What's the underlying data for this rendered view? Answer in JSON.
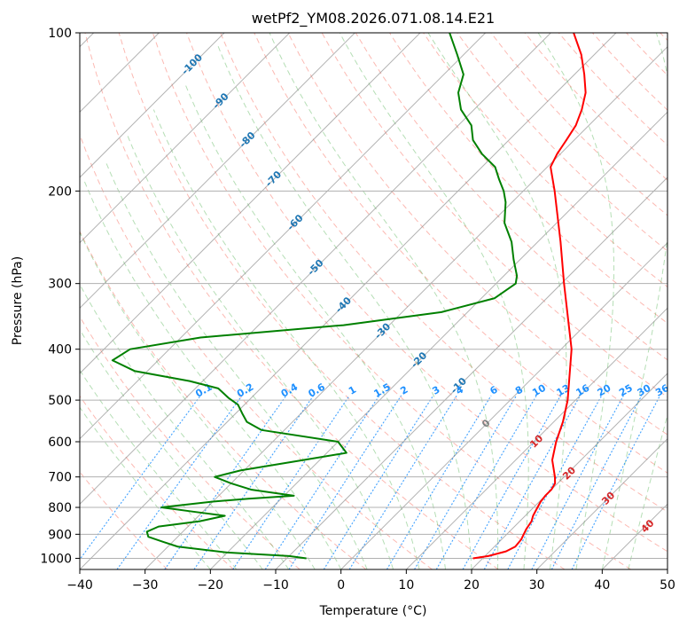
{
  "chart_data": {
    "type": "skew-t",
    "title": "wetPf2_YM08.2026.071.08.14.E21",
    "xlabel": "Temperature (°C)",
    "ylabel": "Pressure (hPa)",
    "xlim": [
      -40,
      50
    ],
    "ylim": [
      1050,
      100
    ],
    "y_scale": "log",
    "grid": true,
    "x_ticks": [
      "−40",
      "−30",
      "−20",
      "−10",
      "0",
      "10",
      "20",
      "30",
      "40",
      "50"
    ],
    "y_ticks": [
      "100",
      "200",
      "300",
      "400",
      "500",
      "600",
      "700",
      "800",
      "900",
      "1000"
    ],
    "colors": {
      "temperature": "#ff0000",
      "dewpoint": "#008000",
      "isotherm_labels": "#1f77b4",
      "mixing_ratio_labels": "#1e90ff",
      "moist_adiabat_labels": "#d62728",
      "dry_adiabat": "#fa8072",
      "moist_adiabat": "#2ca02c",
      "mixing_ratio": "#1e90ff",
      "isotherm": "#808080"
    },
    "isotherm_labels": [
      "-100",
      "-90",
      "-80",
      "-70",
      "-60",
      "-50",
      "-40",
      "-30",
      "-20",
      "-10",
      "0"
    ],
    "mixing_ratio_labels": [
      "0.1",
      "0.2",
      "0.4",
      "0.6",
      "1",
      "1.5",
      "2",
      "3",
      "4",
      "6",
      "8",
      "10",
      "13",
      "16",
      "20",
      "25",
      "30",
      "36"
    ],
    "moist_adiabat_labels": [
      "10",
      "20",
      "30",
      "40"
    ],
    "series": [
      {
        "name": "temperature",
        "points": [
          [
            1000,
            18.5
          ],
          [
            990,
            20.5
          ],
          [
            970,
            22.5
          ],
          [
            950,
            23.2
          ],
          [
            920,
            23.0
          ],
          [
            900,
            22.6
          ],
          [
            880,
            22.2
          ],
          [
            850,
            21.8
          ],
          [
            830,
            21.2
          ],
          [
            800,
            20.6
          ],
          [
            780,
            20.2
          ],
          [
            760,
            20.0
          ],
          [
            740,
            20.0
          ],
          [
            720,
            19.6
          ],
          [
            700,
            18.6
          ],
          [
            650,
            15.6
          ],
          [
            600,
            13.4
          ],
          [
            550,
            11.4
          ],
          [
            500,
            8.8
          ],
          [
            450,
            5.4
          ],
          [
            400,
            1.6
          ],
          [
            350,
            -3.6
          ],
          [
            300,
            -9.6
          ],
          [
            250,
            -16.5
          ],
          [
            200,
            -25.2
          ],
          [
            180,
            -29.5
          ],
          [
            170,
            -30.5
          ],
          [
            160,
            -31.2
          ],
          [
            150,
            -32.0
          ],
          [
            140,
            -33.5
          ],
          [
            130,
            -35.5
          ],
          [
            120,
            -38.5
          ],
          [
            110,
            -42.0
          ],
          [
            100,
            -46.5
          ]
        ]
      },
      {
        "name": "dewpoint",
        "points": [
          [
            1000,
            -7.0
          ],
          [
            990,
            -10.0
          ],
          [
            975,
            -20.0
          ],
          [
            950,
            -28.5
          ],
          [
            930,
            -31.5
          ],
          [
            910,
            -34.5
          ],
          [
            890,
            -35.5
          ],
          [
            870,
            -34.5
          ],
          [
            850,
            -29.0
          ],
          [
            830,
            -26.0
          ],
          [
            815,
            -31.5
          ],
          [
            800,
            -37.0
          ],
          [
            780,
            -30.0
          ],
          [
            770,
            -25.0
          ],
          [
            760,
            -18.5
          ],
          [
            740,
            -26.0
          ],
          [
            720,
            -30.0
          ],
          [
            700,
            -33.5
          ],
          [
            680,
            -30.5
          ],
          [
            650,
            -22.5
          ],
          [
            630,
            -17.0
          ],
          [
            600,
            -20.0
          ],
          [
            570,
            -33.5
          ],
          [
            550,
            -37.0
          ],
          [
            530,
            -39.0
          ],
          [
            510,
            -41.0
          ],
          [
            495,
            -43.5
          ],
          [
            475,
            -46.5
          ],
          [
            460,
            -52.0
          ],
          [
            440,
            -62.0
          ],
          [
            420,
            -67.0
          ],
          [
            400,
            -66.0
          ],
          [
            380,
            -57.0
          ],
          [
            360,
            -37.0
          ],
          [
            340,
            -24.0
          ],
          [
            320,
            -18.0
          ],
          [
            300,
            -17.0
          ],
          [
            290,
            -18.0
          ],
          [
            270,
            -21.0
          ],
          [
            250,
            -24.0
          ],
          [
            230,
            -28.0
          ],
          [
            210,
            -31.0
          ],
          [
            200,
            -33.0
          ],
          [
            190,
            -35.5
          ],
          [
            180,
            -38.0
          ],
          [
            170,
            -42.0
          ],
          [
            160,
            -45.5
          ],
          [
            150,
            -48.0
          ],
          [
            140,
            -52.0
          ],
          [
            130,
            -55.0
          ],
          [
            120,
            -57.0
          ],
          [
            110,
            -61.0
          ],
          [
            100,
            -65.5
          ]
        ]
      }
    ]
  }
}
